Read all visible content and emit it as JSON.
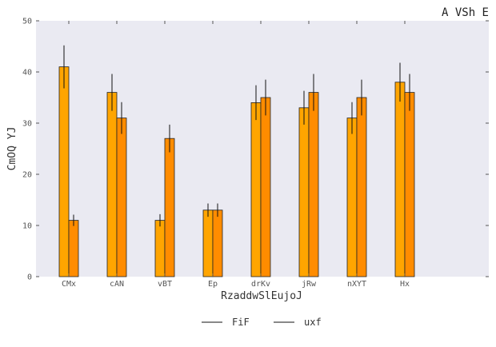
{
  "chart_data": {
    "type": "bar",
    "title": "A  VSh E",
    "xlabel": "RzaddwSlEujoJ",
    "ylabel": "CmOQ YJ",
    "categories": [
      "CMx",
      "cAN",
      "vBT",
      "Ep",
      "drKv",
      "jRw",
      "nXYT",
      "Hx"
    ],
    "ylim": [
      0,
      50
    ],
    "yticks": [
      0,
      10,
      20,
      30,
      40,
      50
    ],
    "grid": false,
    "legend_position": "bottom-center",
    "series": [
      {
        "name": "FiF",
        "color": "#ffa500",
        "values": [
          41,
          36,
          11,
          13,
          34,
          33,
          31,
          38
        ],
        "errors": [
          4.2,
          3.6,
          1.2,
          1.3,
          3.4,
          3.3,
          3.1,
          3.8
        ]
      },
      {
        "name": "uxf",
        "color": "#ff8c00",
        "values": [
          11,
          31,
          27,
          13,
          35,
          36,
          35,
          36
        ],
        "errors": [
          1.1,
          3.1,
          2.7,
          1.3,
          3.5,
          3.6,
          3.5,
          3.6
        ]
      }
    ]
  }
}
